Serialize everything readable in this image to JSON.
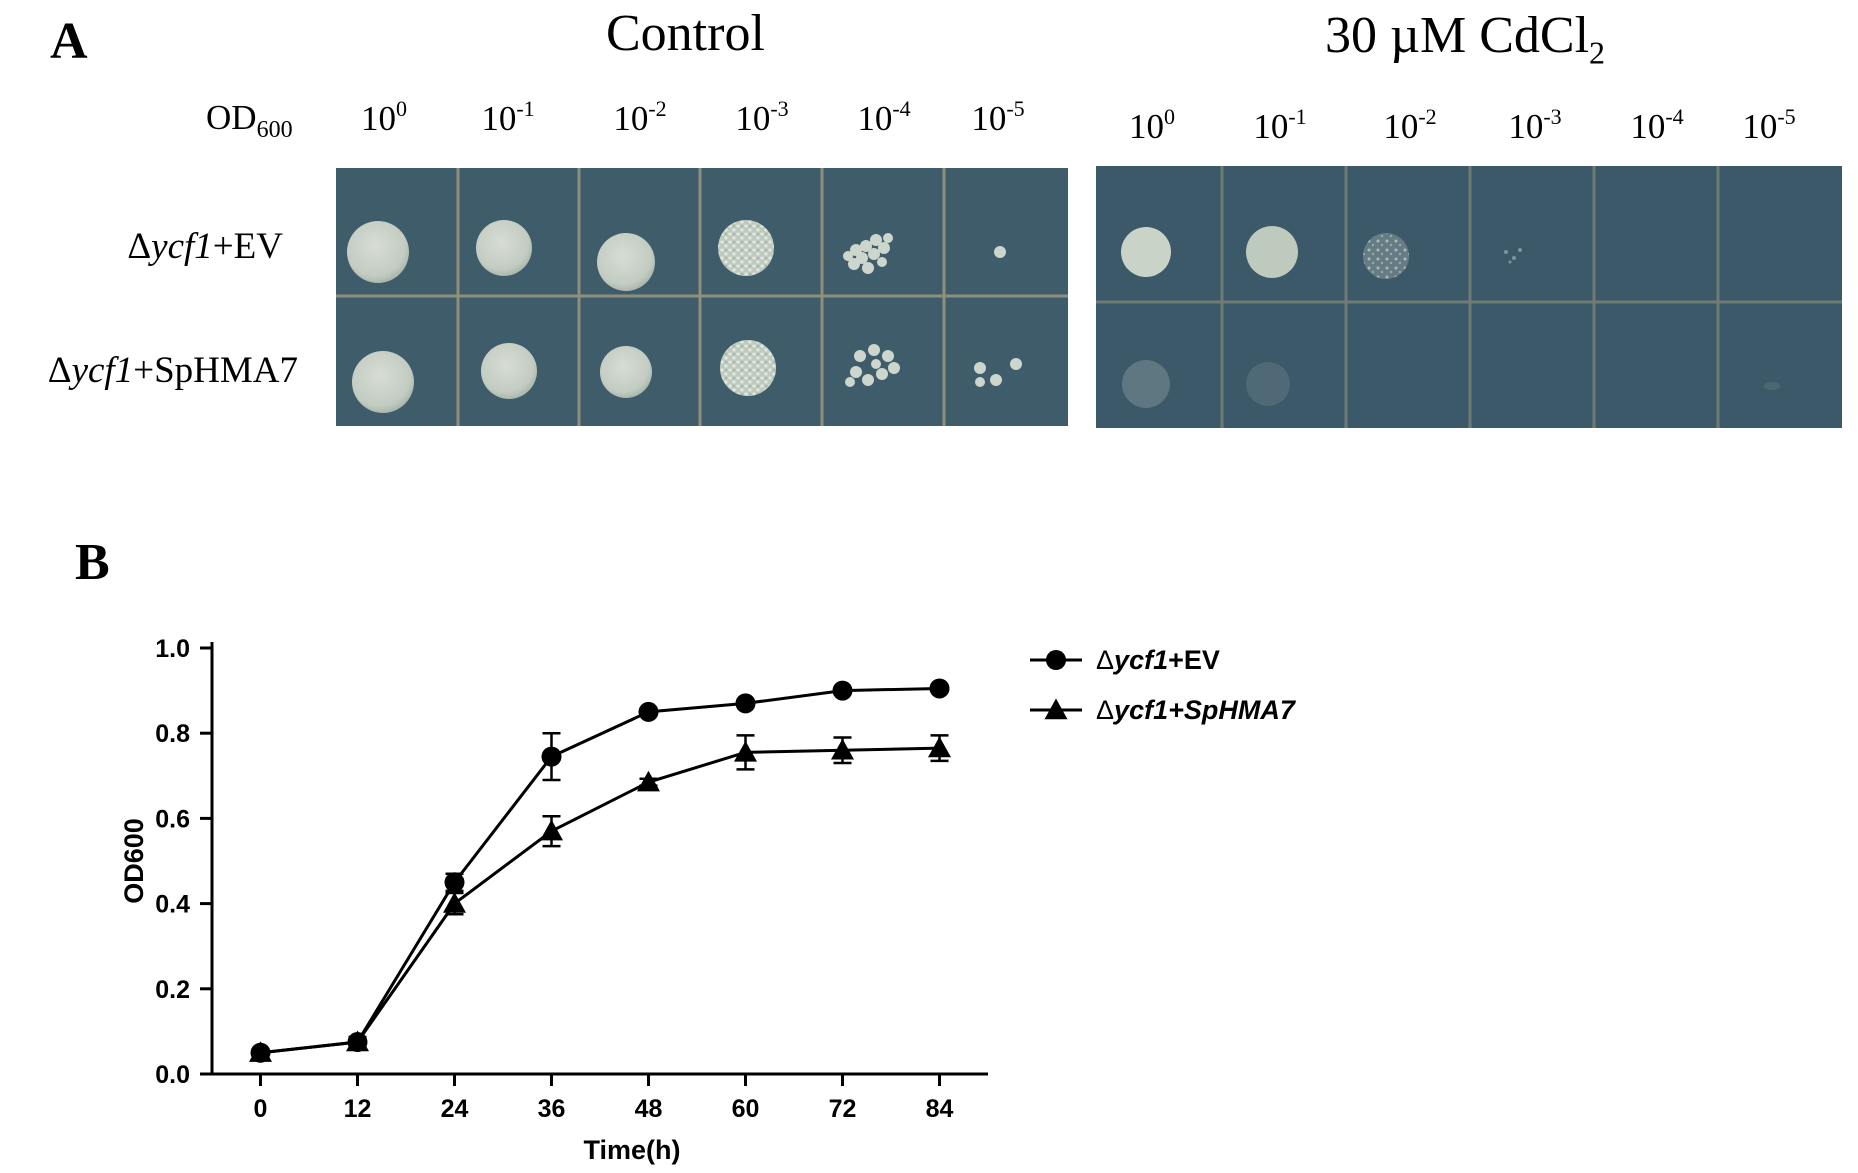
{
  "panel_a": {
    "letter": "A",
    "control_title": "Control",
    "cd_title_prefix": "30 µM CdCl",
    "cd_title_sub": "2",
    "od_label_main": "OD",
    "od_label_sub": "600",
    "dilution_base": "10",
    "dilution_exponents": [
      "0",
      "-1",
      "-2",
      "-3",
      "-4",
      "-5"
    ],
    "strains": [
      {
        "prefix": "Δ",
        "gene": "ycf1",
        "suffix": "+EV",
        "suffix_italic": false
      },
      {
        "prefix": "Δ",
        "gene": "ycf1",
        "suffix": "+SpHMA7",
        "suffix_italic": true
      }
    ],
    "colors": {
      "agar_control": "#3f5c6b",
      "agar_cd": "#3b5968",
      "colony": "#c9d3c9",
      "grid": "#8a8a7a"
    }
  },
  "panel_b": {
    "letter": "B"
  },
  "chart_data": {
    "type": "line",
    "xlabel": "Time(h)",
    "ylabel": "OD600",
    "x": [
      0,
      12,
      24,
      36,
      48,
      60,
      72,
      84
    ],
    "xlim": [
      -6,
      90
    ],
    "ylim": [
      0,
      1.0
    ],
    "yticks": [
      "0.0",
      "0.2",
      "0.4",
      "0.6",
      "0.8",
      "1.0"
    ],
    "xticks": [
      "0",
      "12",
      "24",
      "36",
      "48",
      "60",
      "72",
      "84"
    ],
    "legend_placement": "top-right",
    "series": [
      {
        "name_prefix": "Δ",
        "name_gene": "ycf1",
        "name_suffix": "+EV",
        "marker": "circle",
        "values": [
          0.05,
          0.075,
          0.45,
          0.745,
          0.85,
          0.87,
          0.9,
          0.905
        ],
        "errors": [
          0.005,
          0.005,
          0.02,
          0.055,
          0.008,
          0.008,
          0.008,
          0.008
        ]
      },
      {
        "name_prefix": "Δ",
        "name_gene": "ycf1",
        "name_suffix": "+SpHMA7",
        "marker": "triangle",
        "values": [
          0.05,
          0.075,
          0.4,
          0.57,
          0.685,
          0.755,
          0.76,
          0.765
        ],
        "errors": [
          0.005,
          0.012,
          0.025,
          0.035,
          0.008,
          0.04,
          0.03,
          0.03
        ]
      }
    ]
  }
}
